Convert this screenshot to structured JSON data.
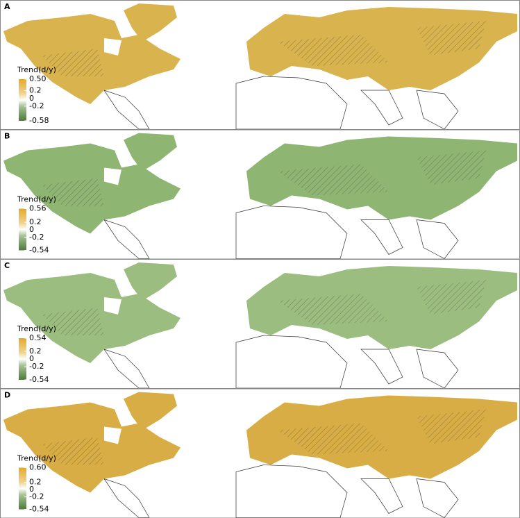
{
  "panels": [
    {
      "label": "A",
      "legend": {
        "title": "Trend(d/y)",
        "lim": [
          -0.58,
          0.5
        ],
        "ticks": [
          {
            "value": 0.5,
            "label": "0.50"
          },
          0.2,
          0,
          -0.2,
          -0.58
        ]
      }
    },
    {
      "label": "B",
      "legend": {
        "title": "Trend(d/y)",
        "lim": [
          -0.54,
          0.56
        ],
        "ticks": [
          0.56,
          0.2,
          0,
          -0.2,
          -0.54
        ]
      }
    },
    {
      "label": "C",
      "legend": {
        "title": "Trend(d/y)",
        "lim": [
          -0.54,
          0.54
        ],
        "ticks": [
          0.54,
          0.2,
          0,
          -0.2,
          -0.54
        ]
      }
    },
    {
      "label": "D",
      "legend": {
        "title": "Trend(d/y)",
        "lim": [
          -0.54,
          0.6
        ],
        "ticks": [
          {
            "value": 0.6,
            "label": "0.60"
          },
          0.2,
          0,
          -0.2,
          -0.54
        ]
      }
    }
  ]
}
